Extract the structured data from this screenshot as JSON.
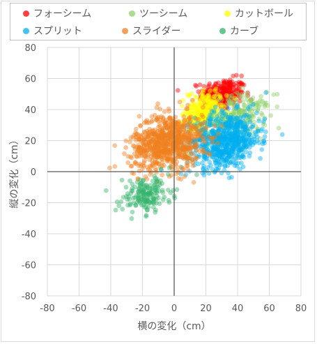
{
  "chart_data": {
    "type": "scatter",
    "xlabel": "横の変化（cm）",
    "ylabel": "縦の変化（cm）",
    "xlim": [
      -80,
      80
    ],
    "ylim": [
      -80,
      80
    ],
    "xticks": [
      "-80",
      "-60",
      "-40",
      "-20",
      "0",
      "20",
      "40",
      "60",
      "80"
    ],
    "yticks": [
      "80",
      "60",
      "40",
      "20",
      "0",
      "-20",
      "-40",
      "-60",
      "-80"
    ],
    "grid": true,
    "legend_position": "top",
    "series": [
      {
        "name": "フォーシーム",
        "color": "#ff0000",
        "cluster": {
          "cx": 30,
          "cy": 50,
          "sx": 7,
          "sy": 5,
          "n": 260
        }
      },
      {
        "name": "ツーシーム",
        "color": "#8fd16a",
        "cluster": {
          "cx": 40,
          "cy": 36,
          "sx": 10,
          "sy": 7,
          "n": 230
        }
      },
      {
        "name": "カットボール",
        "color": "#ffff00",
        "cluster": {
          "cx": 18,
          "cy": 38,
          "sx": 6,
          "sy": 7,
          "n": 260
        }
      },
      {
        "name": "スプリット",
        "color": "#00b0f0",
        "cluster": {
          "cx": 32,
          "cy": 20,
          "sx": 11,
          "sy": 9,
          "n": 700
        }
      },
      {
        "name": "スライダー",
        "color": "#f08020",
        "cluster": {
          "cx": -4,
          "cy": 19,
          "sx": 11,
          "sy": 9,
          "n": 800
        }
      },
      {
        "name": "カーブ",
        "color": "#33b36a",
        "cluster": {
          "cx": -18,
          "cy": -15,
          "sx": 8,
          "sy": 6,
          "n": 170
        }
      }
    ]
  }
}
